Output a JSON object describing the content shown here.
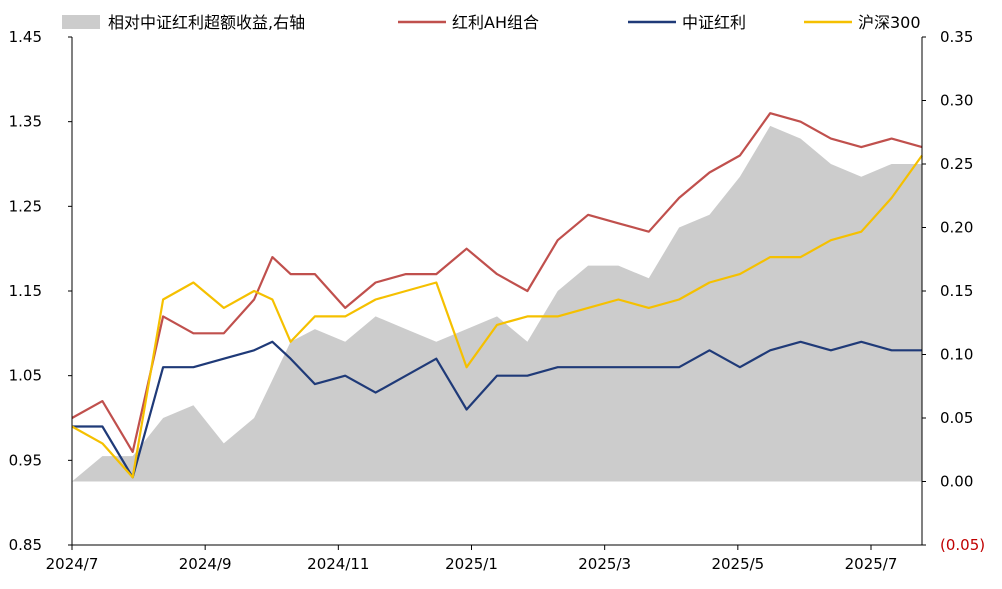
{
  "chart_data": {
    "type": "line",
    "title": "",
    "x_tick_labels": [
      "2024/7",
      "2024/9",
      "2024/11",
      "2025/1",
      "2025/3",
      "2025/5",
      "2025/7"
    ],
    "left_axis": {
      "min": 0.85,
      "max": 1.45,
      "ticks": [
        "1.45",
        "1.35",
        "1.25",
        "1.15",
        "1.05",
        "0.95",
        "0.85"
      ]
    },
    "right_axis": {
      "min": -0.05,
      "max": 0.35,
      "ticks": [
        "0.35",
        "0.30",
        "0.25",
        "0.20",
        "0.15",
        "0.10",
        "0.05",
        "0.00",
        "(0.05)"
      ]
    },
    "legend": [
      {
        "name": "相对中证红利超额收益,右轴",
        "color": "#cccccc",
        "kind": "area"
      },
      {
        "name": "红利AH组合",
        "color": "#c0504d",
        "kind": "line"
      },
      {
        "name": "中证红利",
        "color": "#1f3a78",
        "kind": "line"
      },
      {
        "name": "沪深300",
        "color": "#f5c000",
        "kind": "line"
      }
    ],
    "x": [
      0,
      0.5,
      1,
      1.5,
      2,
      2.5,
      3,
      3.3,
      3.6,
      4,
      4.5,
      5,
      5.5,
      6,
      6.5,
      7,
      7.5,
      8,
      8.5,
      9,
      9.5,
      10,
      10.5,
      11,
      11.5,
      12,
      12.5,
      13,
      13.5,
      14
    ],
    "series": [
      {
        "name": "红利AH组合",
        "axis": "left",
        "color": "#c0504d",
        "values": [
          1.0,
          1.02,
          0.96,
          1.12,
          1.1,
          1.1,
          1.14,
          1.19,
          1.17,
          1.17,
          1.13,
          1.16,
          1.17,
          1.17,
          1.2,
          1.17,
          1.15,
          1.21,
          1.24,
          1.23,
          1.22,
          1.26,
          1.29,
          1.31,
          1.36,
          1.35,
          1.33,
          1.32,
          1.33,
          1.32
        ]
      },
      {
        "name": "中证红利",
        "axis": "left",
        "color": "#1f3a78",
        "values": [
          0.99,
          0.99,
          0.93,
          1.06,
          1.06,
          1.07,
          1.08,
          1.09,
          1.07,
          1.04,
          1.05,
          1.03,
          1.05,
          1.07,
          1.01,
          1.05,
          1.05,
          1.06,
          1.06,
          1.06,
          1.06,
          1.06,
          1.08,
          1.06,
          1.08,
          1.09,
          1.08,
          1.09,
          1.08,
          1.08
        ]
      },
      {
        "name": "沪深300",
        "axis": "left",
        "color": "#f5c000",
        "values": [
          0.99,
          0.97,
          0.93,
          1.14,
          1.16,
          1.13,
          1.15,
          1.14,
          1.09,
          1.12,
          1.12,
          1.14,
          1.15,
          1.16,
          1.06,
          1.11,
          1.12,
          1.12,
          1.13,
          1.14,
          1.13,
          1.14,
          1.16,
          1.17,
          1.19,
          1.19,
          1.21,
          1.22,
          1.26,
          1.31
        ]
      },
      {
        "name": "相对中证红利超额收益,右轴",
        "axis": "right",
        "color": "#cccccc",
        "values": [
          0.0,
          0.02,
          0.02,
          0.05,
          0.06,
          0.03,
          0.05,
          0.08,
          0.11,
          0.12,
          0.11,
          0.13,
          0.12,
          0.11,
          0.12,
          0.13,
          0.11,
          0.15,
          0.17,
          0.17,
          0.16,
          0.2,
          0.21,
          0.24,
          0.28,
          0.27,
          0.25,
          0.24,
          0.25,
          0.25
        ]
      }
    ]
  }
}
